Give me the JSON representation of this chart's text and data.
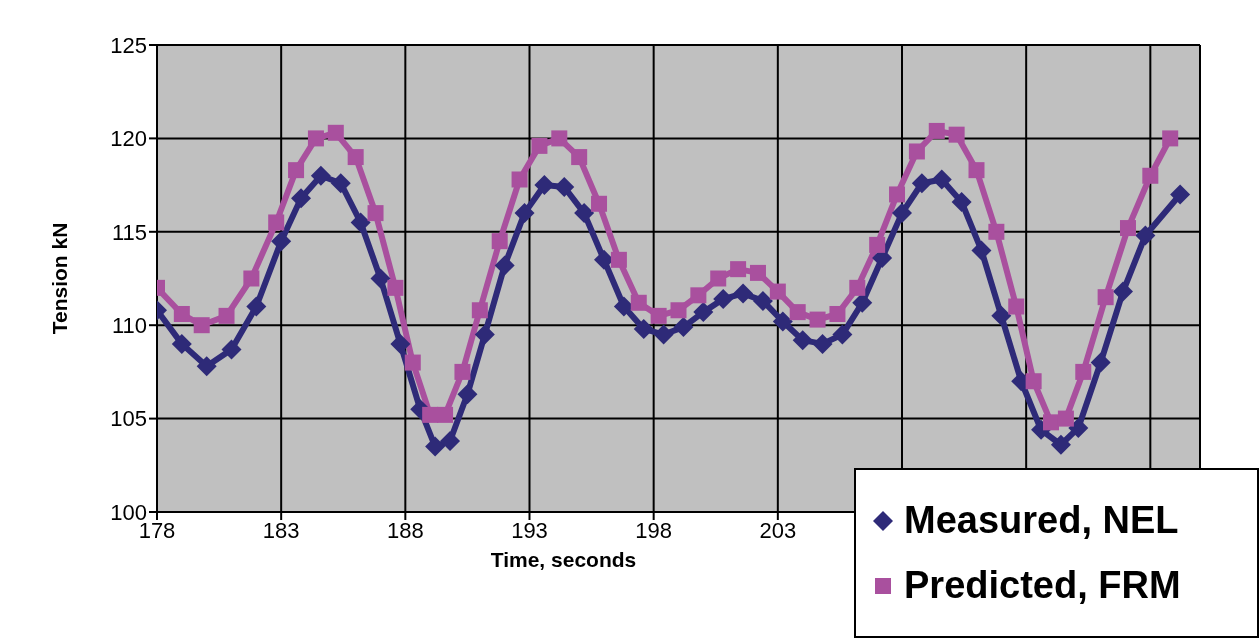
{
  "chart_data": {
    "type": "line",
    "xlabel": "Time, seconds",
    "ylabel": "Tension kN",
    "xlim": [
      178,
      220
    ],
    "xticks": [
      178,
      183,
      188,
      193,
      198,
      203,
      {
        "value": 208,
        "label": null
      },
      {
        "value": 213,
        "label": null
      },
      {
        "value": 218,
        "label": null
      }
    ],
    "ylim": [
      100,
      125
    ],
    "yticks": [
      100,
      105,
      110,
      115,
      120,
      125
    ],
    "grid": true,
    "legend": "bottom right",
    "series": [
      {
        "name": "Measured, NEL",
        "color": "#2e2a78",
        "marker": "diamond",
        "x": [
          178,
          179,
          180,
          181,
          182,
          183,
          183.8,
          184.6,
          185.4,
          186.2,
          187,
          187.8,
          188.6,
          189.2,
          189.8,
          190.5,
          191.2,
          192,
          192.8,
          193.6,
          194.4,
          195.2,
          196,
          196.8,
          197.6,
          198.4,
          199.2,
          200,
          200.8,
          201.6,
          202.4,
          203.2,
          204,
          204.8,
          205.6,
          206.4,
          207.2,
          208,
          208.8,
          209.6,
          210.4,
          211.2,
          212,
          212.8,
          213.6,
          214.4,
          215.1,
          216,
          216.9,
          217.8,
          219.2
        ],
        "values": [
          110.8,
          109,
          107.8,
          108.7,
          111,
          114.5,
          116.8,
          118,
          117.6,
          115.5,
          112.5,
          109,
          105.5,
          103.5,
          103.8,
          106.3,
          109.5,
          113.2,
          116,
          117.5,
          117.4,
          116,
          113.5,
          111,
          109.8,
          109.5,
          109.9,
          110.7,
          111.4,
          111.7,
          111.3,
          110.2,
          109.2,
          109,
          109.5,
          111.2,
          113.6,
          116,
          117.6,
          117.8,
          116.6,
          114,
          110.5,
          107,
          104.4,
          103.6,
          104.5,
          108,
          111.8,
          114.8,
          117
        ]
      },
      {
        "name": "Predicted, FRM",
        "color": "#a9509e",
        "marker": "square",
        "x": [
          178,
          179,
          179.8,
          180.8,
          181.8,
          182.8,
          183.6,
          184.4,
          185.2,
          186,
          186.8,
          187.6,
          188.3,
          189,
          189.6,
          190.3,
          191,
          191.8,
          192.6,
          193.4,
          194.2,
          195,
          195.8,
          196.6,
          197.4,
          198.2,
          199,
          199.8,
          200.6,
          201.4,
          202.2,
          203,
          203.8,
          204.6,
          205.4,
          206.2,
          207,
          207.8,
          208.6,
          209.4,
          210.2,
          211,
          211.8,
          212.6,
          213.3,
          214,
          214.6,
          215.3,
          216.2,
          217.1,
          218,
          218.8
        ],
        "values": [
          112,
          110.6,
          110,
          110.5,
          112.5,
          115.5,
          118.3,
          120,
          120.3,
          119,
          116,
          112,
          108,
          105.2,
          105.2,
          107.5,
          110.8,
          114.5,
          117.8,
          119.6,
          120,
          119,
          116.5,
          113.5,
          111.2,
          110.5,
          110.8,
          111.6,
          112.5,
          113,
          112.8,
          111.8,
          110.7,
          110.3,
          110.6,
          112,
          114.3,
          117,
          119.3,
          120.4,
          120.2,
          118.3,
          115,
          111,
          107,
          104.8,
          105,
          107.5,
          111.5,
          115.2,
          118,
          120
        ]
      }
    ]
  }
}
